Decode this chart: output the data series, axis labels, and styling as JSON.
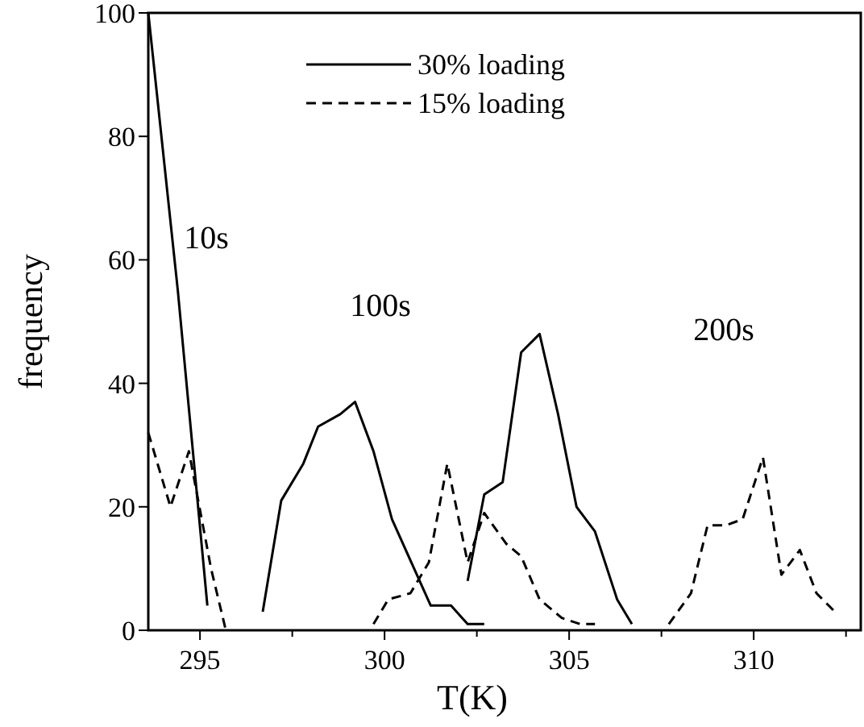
{
  "chart_data": {
    "type": "line",
    "xlabel": "T(K)",
    "ylabel": "frequency",
    "xlim": [
      293.6,
      312.9
    ],
    "ylim": [
      0,
      100
    ],
    "xticks": [
      295,
      {
        "value": 297.5,
        "label": null
      },
      300,
      {
        "value": 302.5,
        "label": null
      },
      305,
      {
        "value": 307.5,
        "label": null
      },
      310,
      {
        "value": 312.5,
        "label": null
      }
    ],
    "yticks": [
      0,
      20,
      40,
      60,
      80,
      100
    ],
    "legend": "top",
    "grid": false,
    "marker": "none",
    "series": [
      {
        "name": "30% loading",
        "color": "#000000",
        "line_style": "solid",
        "x": [
          293.6,
          294.4,
          295.2,
          295.6,
          296.7,
          297.2,
          297.8,
          298.2,
          298.8,
          299.2,
          299.7,
          300.2,
          300.8,
          301.25,
          301.8,
          302.25,
          302.7,
          302.5,
          302.25,
          302.7,
          303.2,
          303.7,
          304.2,
          304.7,
          305.2,
          305.7,
          306.3,
          306.7
        ],
        "values": [
          100,
          55,
          4,
          null,
          3,
          21,
          27,
          33,
          35,
          37,
          29,
          18,
          10,
          4,
          4,
          1,
          1,
          null,
          8,
          22,
          24,
          45,
          48,
          35,
          20,
          16,
          5,
          1
        ]
      },
      {
        "name": "15% loading",
        "color": "#000000",
        "line_style": "dashed",
        "x": [
          293.6,
          294.2,
          294.7,
          295.3,
          295.7,
          297,
          299.7,
          300.1,
          300.7,
          301.2,
          301.7,
          302.25,
          302.7,
          303.3,
          303.7,
          304.2,
          304.8,
          305.3,
          305.7,
          306.5,
          307.7,
          308.3,
          308.75,
          309.25,
          309.7,
          310.25,
          310.75,
          311.25,
          311.7,
          312.2
        ],
        "values": [
          32,
          20,
          29,
          10,
          0,
          null,
          1,
          5,
          6,
          11,
          27,
          11,
          19,
          14,
          12,
          5,
          2,
          1,
          1,
          null,
          1,
          6,
          17,
          17,
          18,
          28,
          9,
          13,
          6,
          3
        ]
      }
    ],
    "annotations": [
      "10s",
      "100s",
      "200s"
    ]
  }
}
